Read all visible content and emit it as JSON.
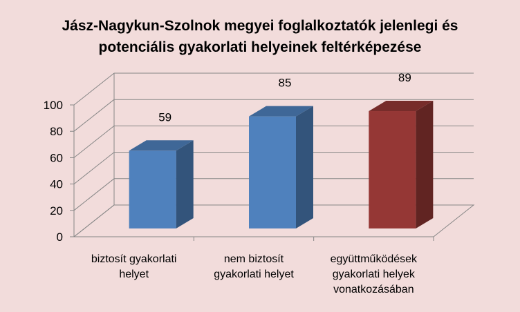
{
  "chart_data": {
    "type": "bar",
    "title_lines": [
      "Jász-Nagykun-Szolnok megyei foglalkoztatók jelenlegi és",
      "potenciális gyakorlati helyeinek feltérképezése"
    ],
    "categories": [
      [
        "biztosít gyakorlati",
        "helyet"
      ],
      [
        "nem biztosít",
        "gyakorlati helyet"
      ],
      [
        "együttműködések",
        "gyakorlati helyek",
        "vonatkozásában"
      ]
    ],
    "values": [
      59,
      85,
      89
    ],
    "data_labels": [
      "59",
      "85",
      "89"
    ],
    "yticks": [
      "0",
      "20",
      "40",
      "60",
      "80",
      "100"
    ],
    "ylim": [
      0,
      100
    ],
    "grid": true,
    "bar_colors": [
      "#4f81bd",
      "#4f81bd",
      "#953735"
    ],
    "background_color": "#f2dcdb"
  }
}
